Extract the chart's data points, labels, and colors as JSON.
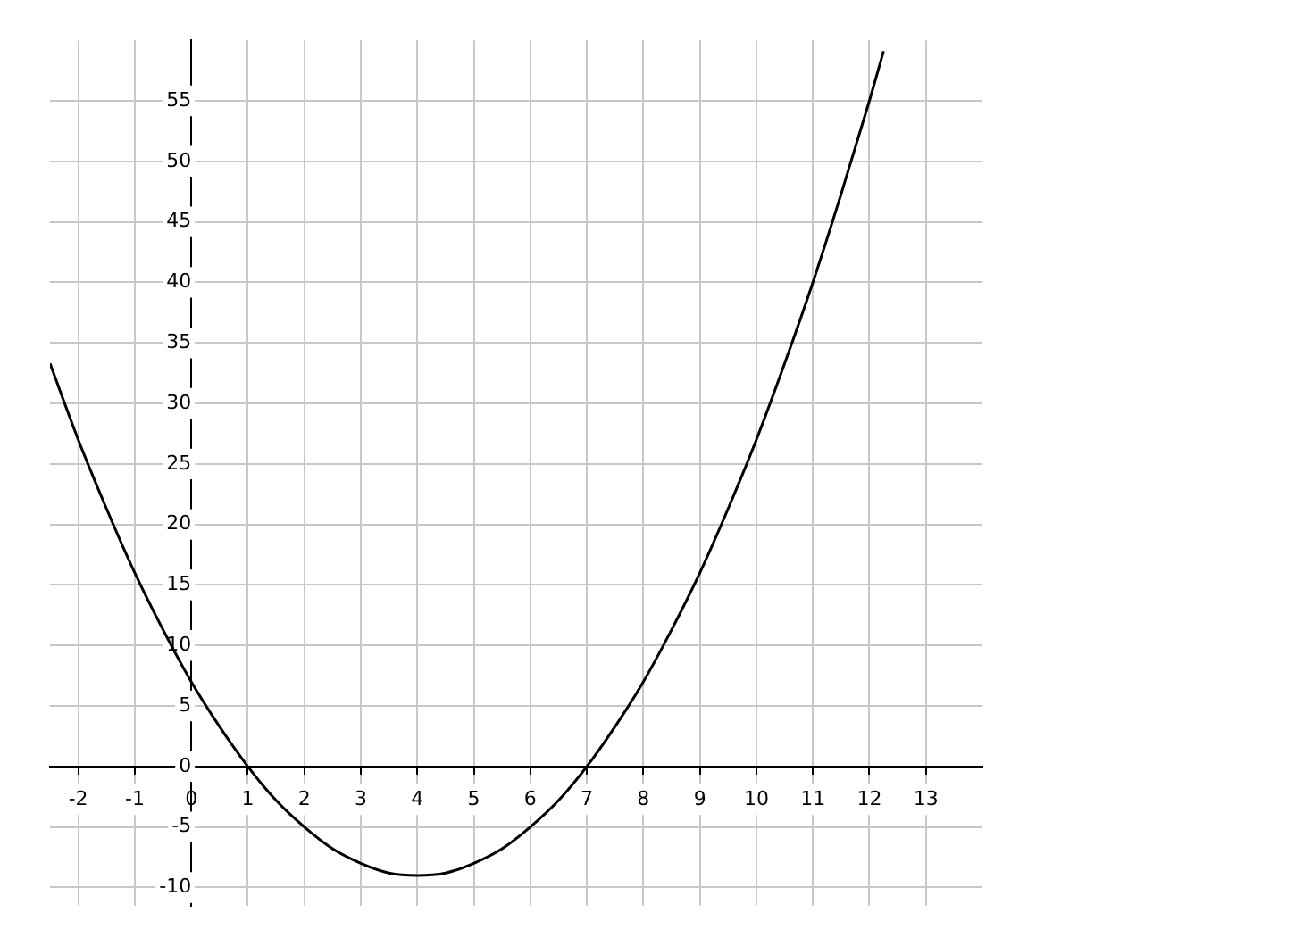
{
  "chart_data": {
    "type": "line",
    "x": [
      -2.5,
      -2,
      -1.5,
      -1,
      -0.5,
      0,
      0.5,
      1,
      1.5,
      2,
      2.5,
      3,
      3.5,
      4,
      4.5,
      5,
      5.5,
      6,
      6.5,
      7,
      7.5,
      8,
      8.5,
      9,
      9.5,
      10,
      10.5,
      11,
      11.5,
      12,
      12.25
    ],
    "series": [
      {
        "color": "#000000",
        "values": [
          33.3,
          27,
          21.3,
          16,
          11.3,
          7,
          3.3,
          0,
          -2.8,
          -5,
          -6.8,
          -8,
          -8.8,
          -9,
          -8.8,
          -8,
          -6.8,
          -5,
          -2.8,
          0,
          3.3,
          7,
          11.3,
          16,
          21.3,
          27,
          33.3,
          40,
          47.3,
          55,
          59.1
        ]
      }
    ],
    "xlim": [
      -2.5,
      14
    ],
    "ylim": [
      -11.5,
      60
    ],
    "xticks": [
      -2,
      -1,
      0,
      1,
      2,
      3,
      4,
      5,
      6,
      7,
      8,
      9,
      10,
      11,
      12,
      13
    ],
    "yticks": [
      -10,
      -5,
      0,
      5,
      10,
      15,
      20,
      25,
      30,
      35,
      40,
      45,
      50,
      55
    ],
    "grid": true,
    "line_style": "solid",
    "marker": "none"
  }
}
